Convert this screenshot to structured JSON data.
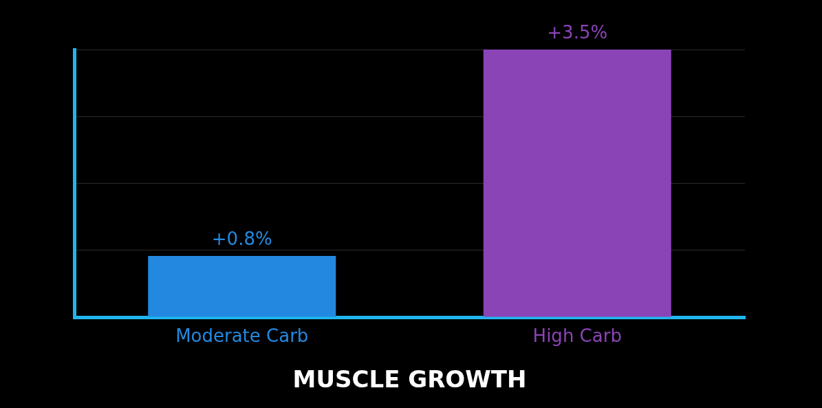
{
  "chart_data": {
    "type": "bar",
    "title": "MUSCLE GROWTH",
    "categories": [
      "Moderate Carb",
      "High Carb"
    ],
    "values": [
      0.8,
      3.5
    ],
    "value_labels": [
      "+0.8%",
      "+3.5%"
    ],
    "colors": [
      "#2389e0",
      "#8a44b6"
    ],
    "ylim": [
      0,
      3.5
    ],
    "yticks": [
      0,
      0.875,
      1.75,
      2.625,
      3.5
    ],
    "grid": true,
    "data_labels": true,
    "tick_labels": "x"
  }
}
